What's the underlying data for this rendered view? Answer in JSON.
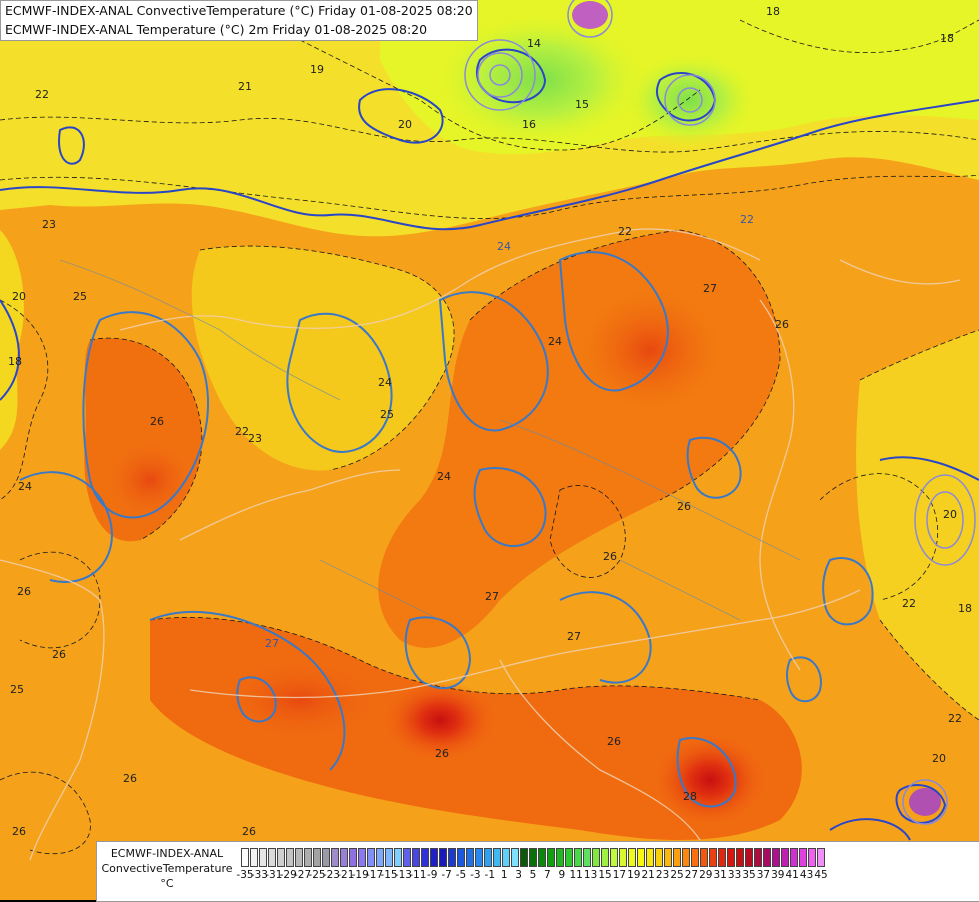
{
  "title_lines": [
    "ECMWF-INDEX-ANAL ConvectiveTemperature (°C) Friday 01-08-2025 08:20",
    "ECMWF-INDEX-ANAL Temperature (°C) 2m Friday 01-08-2025 08:20"
  ],
  "legend": {
    "label_line1": "ECMWF-INDEX-ANAL",
    "label_line2": "ConvectiveTemperature",
    "label_line3": "°C",
    "ticks": [
      "-35",
      "-33",
      "-31",
      "-29",
      "-27",
      "-25",
      "-23",
      "-21",
      "-19",
      "-17",
      "-15",
      "-13",
      "-11",
      "-9",
      "-7",
      "-5",
      "-3",
      "-1",
      "1",
      "3",
      "5",
      "7",
      "9",
      "11",
      "13",
      "15",
      "17",
      "19",
      "21",
      "23",
      "25",
      "27",
      "29",
      "31",
      "33",
      "35",
      "37",
      "39",
      "41",
      "43",
      "45"
    ],
    "colors": [
      "#ffffff",
      "#f2f2f2",
      "#e6e6e6",
      "#dadada",
      "#cfcfcf",
      "#c4c4c4",
      "#b9b9b9",
      "#aeaeae",
      "#a3a3a3",
      "#9a9aa6",
      "#a08cc8",
      "#9a7fd6",
      "#9070e0",
      "#8a78f0",
      "#8090f8",
      "#7fa8ff",
      "#7fb8ff",
      "#7fd0ff",
      "#6060e8",
      "#4848e0",
      "#3030d8",
      "#2020c8",
      "#1a1ab8",
      "#1a3ad0",
      "#1a58e0",
      "#2070e8",
      "#2888f0",
      "#30a0f0",
      "#40b8f0",
      "#60d0f8",
      "#80e0ff",
      "#0a5a0a",
      "#0a700a",
      "#0a880a",
      "#10a010",
      "#20b820",
      "#30c830",
      "#48d848",
      "#60e060",
      "#80e840",
      "#a0f040",
      "#c0f840",
      "#d8f830",
      "#ecf820",
      "#f8f810",
      "#f8e810",
      "#f8d010",
      "#f8b810",
      "#f8a010",
      "#f88810",
      "#f87010",
      "#f05810",
      "#e84010",
      "#e02810",
      "#d81810",
      "#c81010",
      "#b80c20",
      "#b00c40",
      "#a80c60",
      "#b01090",
      "#c020b0",
      "#d030d0",
      "#e040e0",
      "#f060f0",
      "#f090f8"
    ]
  },
  "map_labels": [
    {
      "text": "18"
    },
    {
      "text": "14"
    },
    {
      "text": "15"
    },
    {
      "text": "16"
    },
    {
      "text": "19"
    },
    {
      "text": "21"
    },
    {
      "text": "22"
    },
    {
      "text": "22"
    },
    {
      "text": "18"
    },
    {
      "text": "20"
    },
    {
      "text": "23"
    },
    {
      "text": "25"
    },
    {
      "text": "20"
    },
    {
      "text": "18"
    },
    {
      "text": "24"
    },
    {
      "text": "22"
    },
    {
      "text": "24"
    },
    {
      "text": "27"
    },
    {
      "text": "26"
    },
    {
      "text": "26"
    },
    {
      "text": "22"
    },
    {
      "text": "23"
    },
    {
      "text": "25"
    },
    {
      "text": "24"
    },
    {
      "text": "24"
    },
    {
      "text": "26"
    },
    {
      "text": "24"
    },
    {
      "text": "26"
    },
    {
      "text": "26"
    },
    {
      "text": "27"
    },
    {
      "text": "27"
    },
    {
      "text": "26"
    },
    {
      "text": "27"
    },
    {
      "text": "26"
    },
    {
      "text": "26"
    },
    {
      "text": "25"
    },
    {
      "text": "26"
    },
    {
      "text": "26"
    },
    {
      "text": "26"
    },
    {
      "text": "28"
    },
    {
      "text": "22"
    },
    {
      "text": "18"
    },
    {
      "text": "20"
    },
    {
      "text": "20"
    },
    {
      "text": "22"
    }
  ]
}
